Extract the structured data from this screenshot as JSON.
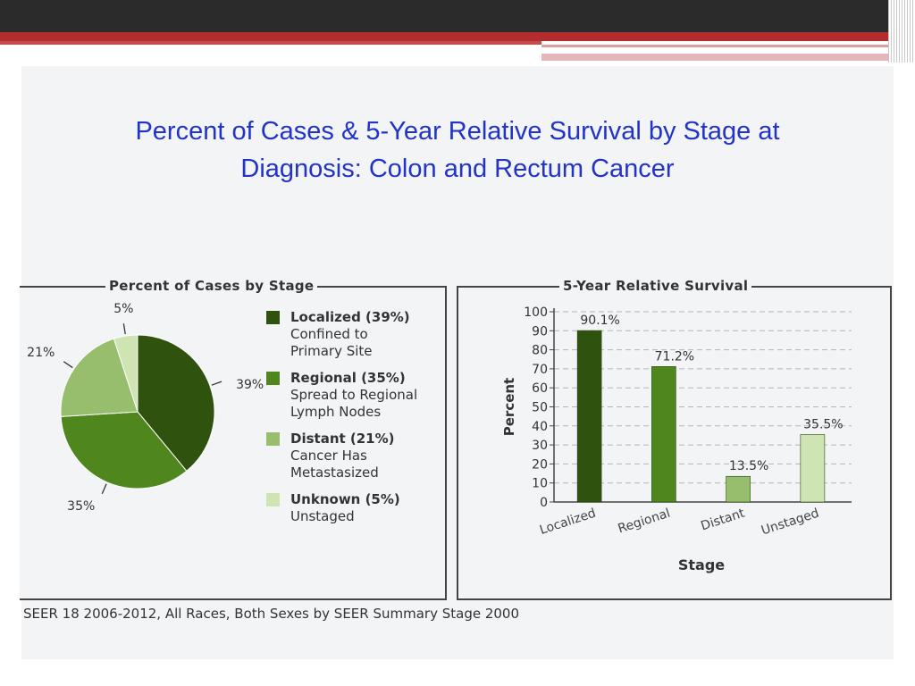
{
  "title_line1": "Percent of Cases & 5-Year Relative Survival by Stage at",
  "title_line2": "Diagnosis: Colon and Rectum Cancer",
  "source": "SEER 18 2006-2012, All Races, Both Sexes by SEER Summary Stage 2000",
  "colors": {
    "localized": "#2f520f",
    "regional": "#4f861e",
    "distant": "#96be6c",
    "unknown": "#cfe4b3",
    "title": "#2233c8"
  },
  "legend": [
    {
      "key": "localized",
      "title": "Localized (39%)",
      "line1": "Confined to",
      "line2": "Primary Site"
    },
    {
      "key": "regional",
      "title": "Regional (35%)",
      "line1": "Spread to Regional",
      "line2": "Lymph Nodes"
    },
    {
      "key": "distant",
      "title": "Distant (21%)",
      "line1": "Cancer Has",
      "line2": "Metastasized"
    },
    {
      "key": "unknown",
      "title": "Unknown (5%)",
      "line1": "Unstaged",
      "line2": ""
    }
  ],
  "chart_data": [
    {
      "type": "pie",
      "title": "Percent of Cases by Stage",
      "categories": [
        "Localized",
        "Regional",
        "Distant",
        "Unknown"
      ],
      "values": [
        39,
        35,
        21,
        5
      ],
      "data_labels": [
        "39%",
        "35%",
        "21%",
        "5%"
      ],
      "legend_position": "right"
    },
    {
      "type": "bar",
      "title": "5-Year Relative Survival",
      "categories": [
        "Localized",
        "Regional",
        "Distant",
        "Unstaged"
      ],
      "values": [
        90.1,
        71.2,
        13.5,
        35.5
      ],
      "data_labels": [
        "90.1%",
        "71.2%",
        "13.5%",
        "35.5%"
      ],
      "xlabel": "Stage",
      "ylabel": "Percent",
      "ylim": [
        0,
        100
      ],
      "yticks": [
        0,
        10,
        20,
        30,
        40,
        50,
        60,
        70,
        80,
        90,
        100
      ],
      "grid": true
    }
  ]
}
